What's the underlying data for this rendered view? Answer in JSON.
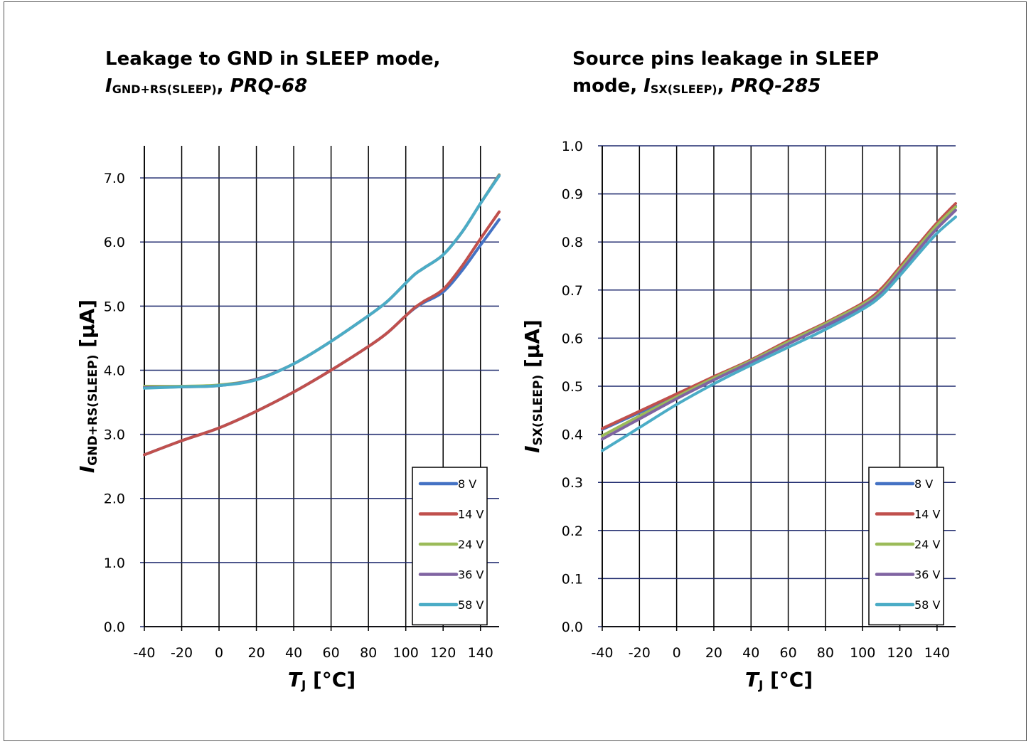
{
  "chart_data": [
    {
      "type": "line",
      "title": {
        "line1": "Leakage to GND in SLEEP mode,",
        "sym": "I",
        "sub": "GND+RS(SLEEP)",
        "sep": ", ",
        "ref": "PRQ-68"
      },
      "xlabel": {
        "sym": "T",
        "sub": "J",
        "unit": "[°C]"
      },
      "ylabel": {
        "sym": "I",
        "sub": "GND+RS(SLEEP)",
        "unit": "[µA]"
      },
      "xlim": [
        -40,
        150
      ],
      "ylim": [
        0,
        7.5
      ],
      "xticks": [
        "-40",
        "-20",
        "0",
        "20",
        "40",
        "60",
        "80",
        "100",
        "120",
        "140"
      ],
      "yticks": [
        "0.0",
        "1.0",
        "2.0",
        "3.0",
        "4.0",
        "5.0",
        "6.0",
        "7.0"
      ],
      "grid": true,
      "legend_position": "bottom-right",
      "x": [
        -40,
        -20,
        0,
        20,
        40,
        60,
        80,
        90,
        100,
        105,
        110,
        120,
        130,
        140,
        150
      ],
      "series": [
        {
          "name": "8 V",
          "color": "#4472c4",
          "values": [
            2.68,
            2.9,
            3.1,
            3.36,
            3.66,
            4.0,
            4.37,
            4.58,
            4.85,
            4.97,
            5.06,
            5.22,
            5.55,
            5.95,
            6.35
          ]
        },
        {
          "name": "14 V",
          "color": "#c0504d",
          "values": [
            2.68,
            2.9,
            3.1,
            3.36,
            3.66,
            4.0,
            4.37,
            4.58,
            4.85,
            4.98,
            5.08,
            5.26,
            5.62,
            6.05,
            6.47
          ]
        },
        {
          "name": "24 V",
          "color": "#9bbb59",
          "values": [
            3.75,
            3.75,
            3.77,
            3.86,
            4.1,
            4.45,
            4.85,
            5.07,
            5.36,
            5.5,
            5.6,
            5.8,
            6.15,
            6.6,
            7.05
          ]
        },
        {
          "name": "36 V",
          "color": "#8064a2",
          "values": [
            3.73,
            3.74,
            3.76,
            3.86,
            4.1,
            4.45,
            4.85,
            5.07,
            5.36,
            5.5,
            5.6,
            5.8,
            6.15,
            6.6,
            7.04
          ]
        },
        {
          "name": "58 V",
          "color": "#4bacc6",
          "values": [
            3.72,
            3.74,
            3.76,
            3.85,
            4.1,
            4.45,
            4.85,
            5.07,
            5.36,
            5.5,
            5.6,
            5.8,
            6.15,
            6.6,
            7.03
          ]
        }
      ]
    },
    {
      "type": "line",
      "title": {
        "line1": "Source pins leakage in SLEEP",
        "pre": "mode, ",
        "sym": "I",
        "sub": "SX(SLEEP)",
        "sep": ", ",
        "ref": "PRQ-285"
      },
      "xlabel": {
        "sym": "T",
        "sub": "J",
        "unit": "[°C]"
      },
      "ylabel": {
        "sym": "I",
        "sub": "SX(SLEEP)",
        "unit": "[µA]"
      },
      "xlim": [
        -40,
        150
      ],
      "ylim": [
        0,
        1.0
      ],
      "xticks": [
        "-40",
        "-20",
        "0",
        "20",
        "40",
        "60",
        "80",
        "100",
        "120",
        "140"
      ],
      "yticks": [
        "0.0",
        "0.1",
        "0.2",
        "0.3",
        "0.4",
        "0.5",
        "0.6",
        "0.7",
        "0.8",
        "0.9",
        "1.0"
      ],
      "grid": true,
      "legend_position": "bottom-right",
      "x": [
        -40,
        -20,
        0,
        20,
        40,
        60,
        80,
        100,
        110,
        120,
        130,
        140,
        150
      ],
      "series": [
        {
          "name": "8 V",
          "color": "#4472c4",
          "values": [
            0.41,
            0.445,
            0.48,
            0.515,
            0.55,
            0.59,
            0.625,
            0.665,
            0.695,
            0.74,
            0.79,
            0.835,
            0.875
          ]
        },
        {
          "name": "14 V",
          "color": "#c0504d",
          "values": [
            0.412,
            0.448,
            0.484,
            0.52,
            0.555,
            0.595,
            0.632,
            0.673,
            0.703,
            0.748,
            0.795,
            0.84,
            0.88
          ]
        },
        {
          "name": "24 V",
          "color": "#9bbb59",
          "values": [
            0.397,
            0.438,
            0.478,
            0.517,
            0.553,
            0.592,
            0.63,
            0.67,
            0.698,
            0.743,
            0.79,
            0.835,
            0.873
          ]
        },
        {
          "name": "36 V",
          "color": "#8064a2",
          "values": [
            0.39,
            0.432,
            0.474,
            0.513,
            0.55,
            0.588,
            0.626,
            0.666,
            0.694,
            0.738,
            0.784,
            0.828,
            0.866
          ]
        },
        {
          "name": "58 V",
          "color": "#4bacc6",
          "values": [
            0.366,
            0.414,
            0.462,
            0.505,
            0.544,
            0.581,
            0.618,
            0.66,
            0.688,
            0.73,
            0.775,
            0.818,
            0.852
          ]
        }
      ]
    }
  ]
}
